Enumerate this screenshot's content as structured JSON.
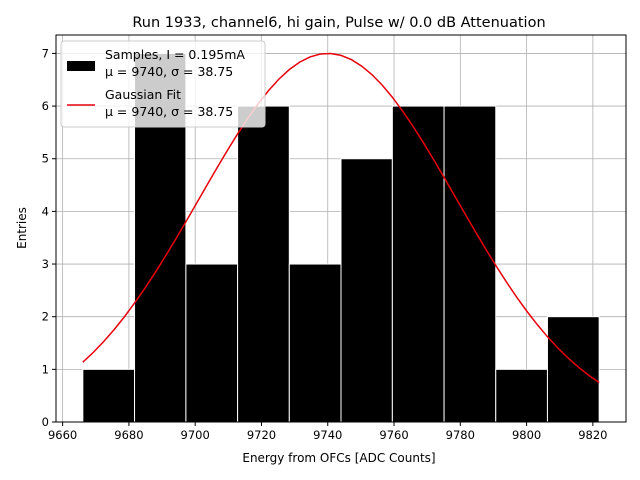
{
  "chart_data": {
    "type": "bar",
    "title": "Run 1933, channel6, hi gain, Pulse w/ 0.0 dB Attenuation",
    "xlabel": "Energy from OFCs [ADC Counts]",
    "ylabel": "Entries",
    "xlim": [
      9658,
      9830
    ],
    "ylim": [
      0,
      7.35
    ],
    "xticks": [
      9660,
      9680,
      9700,
      9720,
      9740,
      9760,
      9780,
      9800,
      9820
    ],
    "yticks": [
      0,
      1,
      2,
      3,
      4,
      5,
      6,
      7
    ],
    "grid": true,
    "legend_position": "top-left",
    "bars": {
      "bin_edges": [
        9666.1,
        9681.7,
        9697.2,
        9712.8,
        9728.4,
        9744.0,
        9759.5,
        9775.1,
        9790.7,
        9806.3,
        9821.9
      ],
      "counts": [
        1,
        7,
        3,
        6,
        3,
        5,
        6,
        6,
        1,
        2
      ],
      "color": "#000000",
      "edgecolor": "#ffffff"
    },
    "fit": {
      "mu": 9740,
      "sigma": 38.75,
      "amplitude": 7.0,
      "x_range": [
        9666.1,
        9821.9
      ],
      "color": "#e8000b"
    },
    "legend": [
      {
        "kind": "patch",
        "line1": "Samples, I = 0.195mA",
        "line2": "μ = 9740, σ = 38.75"
      },
      {
        "kind": "line",
        "line1": "Gaussian Fit",
        "line2": "μ = 9740, σ = 38.75"
      }
    ]
  }
}
